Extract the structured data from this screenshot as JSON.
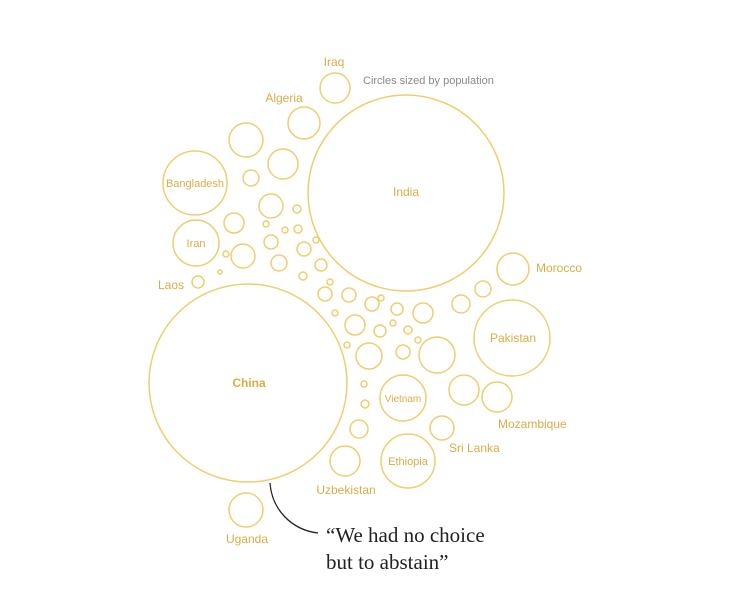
{
  "subtitle": "Circles sized by population",
  "annotation": {
    "line1": "“We had no choice",
    "line2": "but to abstain”"
  },
  "colors": {
    "circle_stroke": "#f0cd6e",
    "label": "#d9ad45",
    "label_bold": "#d4a53a",
    "subtitle": "#8a8a8a",
    "quote": "#222222",
    "leader_line": "#222222"
  },
  "chart_data": {
    "type": "bubble",
    "size_encoding": "population",
    "labeled_countries": [
      "India",
      "China",
      "Pakistan",
      "Bangladesh",
      "Ethiopia",
      "Vietnam",
      "Iran",
      "Algeria",
      "Iraq",
      "Morocco",
      "Mozambique",
      "Sri Lanka",
      "Uzbekistan",
      "Uganda",
      "Laos"
    ],
    "annotated_country": "China",
    "unlabeled_circle_count": 41
  }
}
